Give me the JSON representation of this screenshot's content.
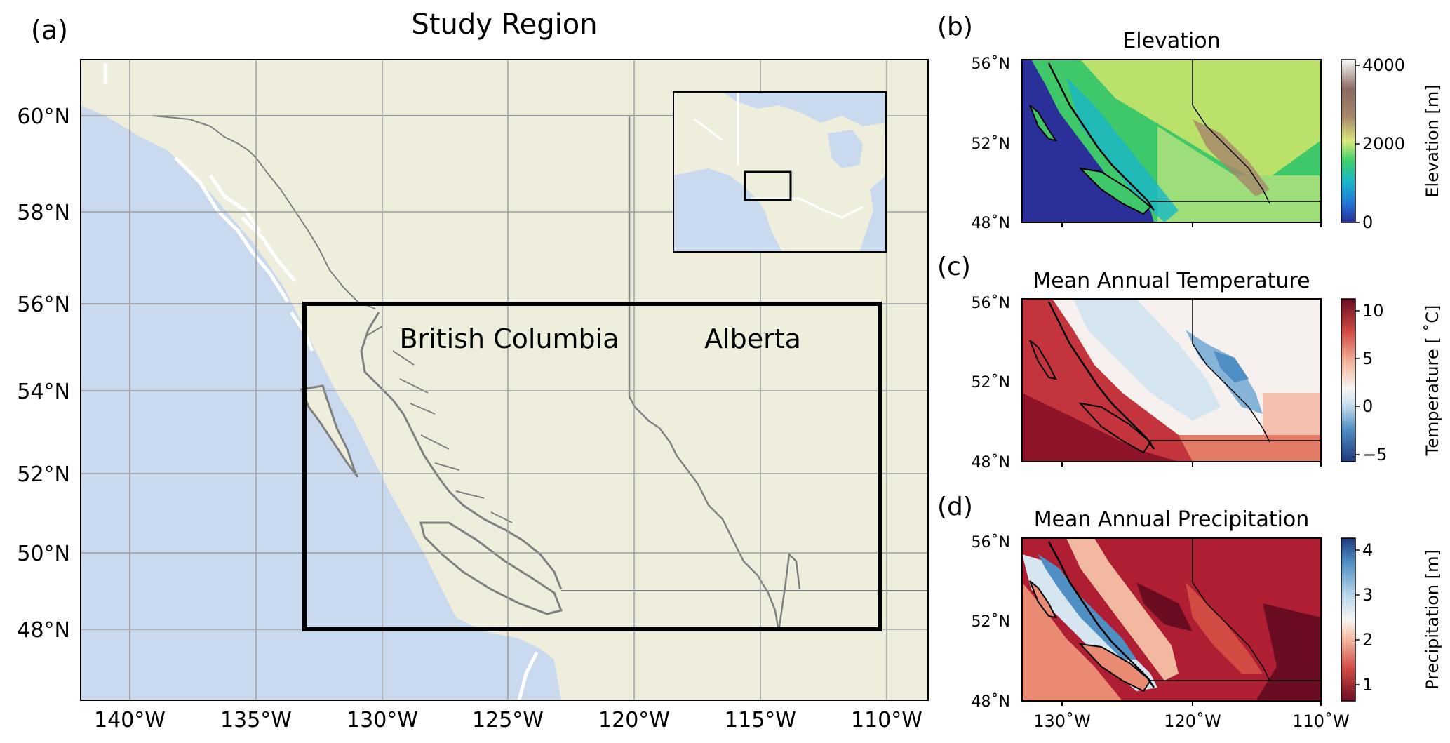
{
  "panel_a": {
    "letter": "(a)",
    "title": "Study Region",
    "lat_labels": [
      "60°N",
      "58°N",
      "56°N",
      "54°N",
      "52°N",
      "50°N",
      "48°N"
    ],
    "lon_labels": [
      "140°W",
      "135°W",
      "130°W",
      "125°W",
      "120°W",
      "115°W",
      "110°W"
    ],
    "region_labels": [
      "British Columbia",
      "Alberta"
    ],
    "colors": {
      "ocean": "#c9d9ee",
      "land": "#efeedc",
      "study_box": "#000000",
      "coast": "#808080"
    }
  },
  "panel_b": {
    "letter": "(b)",
    "title": "Elevation",
    "colorbar_label": "Elevation [m]",
    "colorbar_ticks": [
      "4000",
      "2000",
      "0"
    ]
  },
  "panel_c": {
    "letter": "(c)",
    "title": "Mean Annual Temperature",
    "colorbar_label": "Temperature [ ˚C]",
    "colorbar_ticks": [
      "10",
      "5",
      "0",
      "−5"
    ]
  },
  "panel_d": {
    "letter": "(d)",
    "title": "Mean Annual Precipitation",
    "colorbar_label": "Precipitation [m]",
    "colorbar_ticks": [
      "4",
      "3",
      "2",
      "1"
    ]
  },
  "small_lat_labels": [
    "56˚N",
    "52˚N",
    "48˚N"
  ],
  "small_lon_labels": [
    "130˚W",
    "120˚W",
    "110˚W"
  ]
}
